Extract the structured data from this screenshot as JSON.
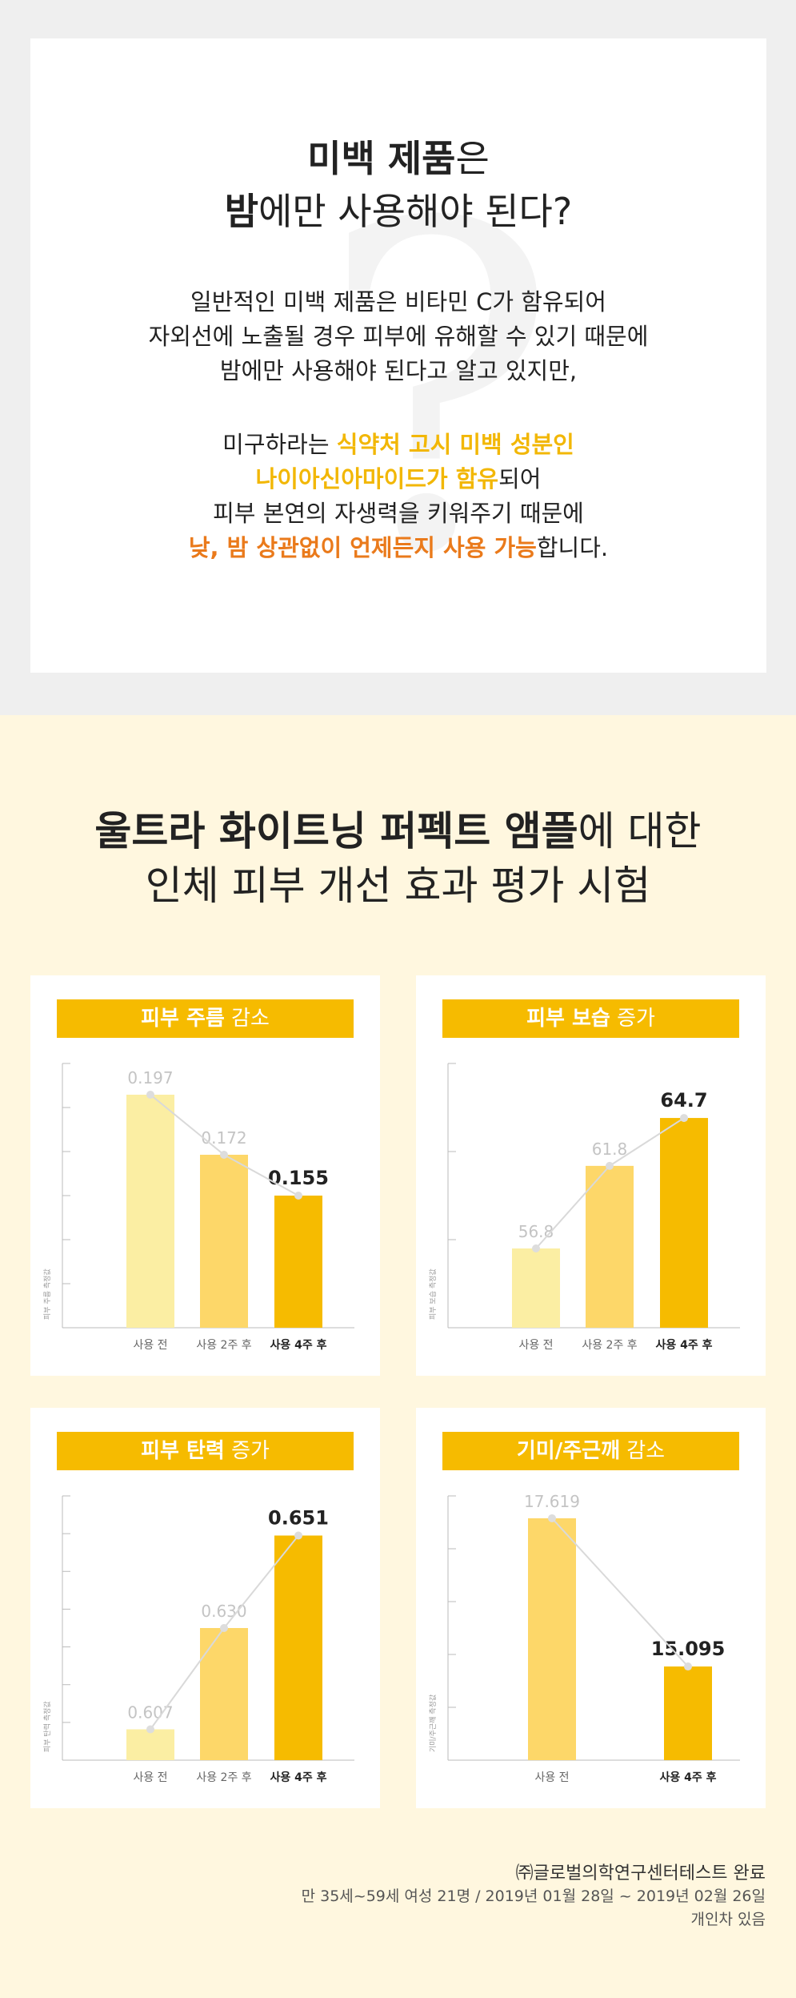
{
  "intro": {
    "title_line1_bold": "미백 제품",
    "title_line1_rest": "은",
    "title_line2_bold": "밤",
    "title_line2_rest": "에만 사용해야 된다?",
    "para1": [
      "일반적인 미백 제품은 비타민 C가 함유되어",
      "자외선에 노출될 경우 피부에 유해할 수 있기 때문에",
      "밤에만 사용해야 된다고 알고 있지만,"
    ],
    "p2_l1_pre": "미구하라는 ",
    "p2_l1_hl": "식약처 고시 미백 성분인",
    "p2_l2_hl": "나이아신아마이드가 함유",
    "p2_l2_post": "되어",
    "p2_l3": "피부 본연의 자생력을 키워주기 때문에",
    "p2_l4_hl": "낮, 밤 상관없이 언제든지 사용 가능",
    "p2_l4_post": "합니다."
  },
  "section2": {
    "title_l1_bold": "울트라 화이트닝 퍼펙트 앰플",
    "title_l1_rest": "에 대한",
    "title_l2": "인체 피부 개선 효과 평가 시험"
  },
  "colors": {
    "light": "#fbeea3",
    "mid": "#fdd769",
    "strong": "#f6bb00",
    "header": "#f6bb00",
    "line": "#d9d9d9"
  },
  "chart_data": [
    {
      "type": "bar",
      "title_bold": "피부 주름",
      "title_rest": " 감소",
      "ylabel": "피부 주름 측정값",
      "categories": [
        "사용 전",
        "사용 2주 후",
        "사용 4주 후"
      ],
      "values": [
        0.197,
        0.172,
        0.155
      ],
      "labels": [
        "0.197",
        "0.172",
        "0.155"
      ],
      "ylim": [
        0.1,
        0.21
      ],
      "ticks": 6
    },
    {
      "type": "bar",
      "title_bold": "피부 보습",
      "title_rest": " 증가",
      "ylabel": "피부 보습 측정값",
      "categories": [
        "사용 전",
        "사용 2주 후",
        "사용 4주 후"
      ],
      "values": [
        56.8,
        61.8,
        64.7
      ],
      "labels": [
        "56.8",
        "61.8",
        "64.7"
      ],
      "ylim": [
        52,
        68
      ],
      "ticks": 3
    },
    {
      "type": "bar",
      "title_bold": "피부 탄력",
      "title_rest": " 증가",
      "ylabel": "피부 탄력 측정값",
      "categories": [
        "사용 전",
        "사용 2주 후",
        "사용 4주 후"
      ],
      "values": [
        0.607,
        0.63,
        0.651
      ],
      "labels": [
        "0.607",
        "0.630",
        "0.651"
      ],
      "ylim": [
        0.6,
        0.66
      ],
      "ticks": 7
    },
    {
      "type": "bar",
      "title_bold": "기미/주근깨",
      "title_rest": " 감소",
      "ylabel": "기미/주근깨 측정값",
      "categories": [
        "사용 전",
        "사용 4주 후"
      ],
      "values": [
        17.619,
        15.095
      ],
      "labels": [
        "17.619",
        "15.095"
      ],
      "ylim": [
        13.5,
        18
      ],
      "ticks": 5
    }
  ],
  "footer": {
    "line1": "㈜글로벌의학연구센터테스트 완료",
    "line2": "만 35세~59세 여성 21명 / 2019년 01월 28일 ~ 2019년 02월 26일",
    "line3": "개인차 있음"
  }
}
